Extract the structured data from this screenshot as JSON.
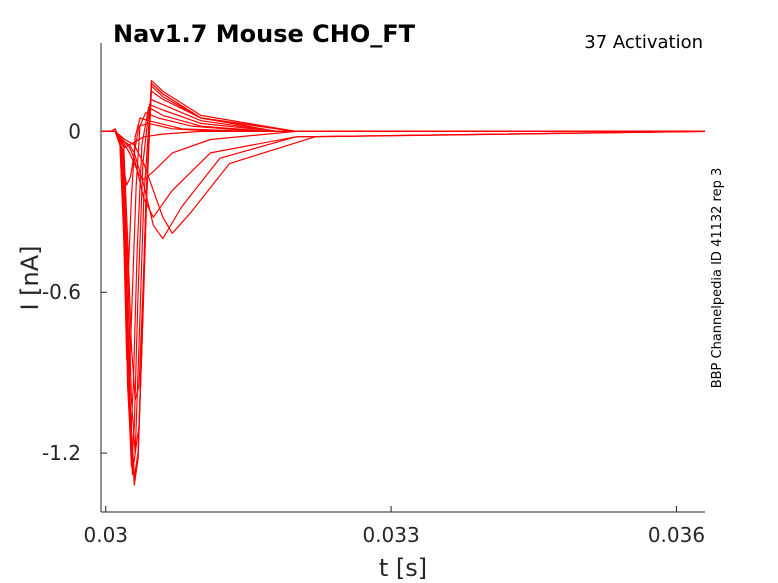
{
  "chart_data": {
    "type": "line",
    "title": "Nav1.7  Mouse  CHO_FT",
    "subtitle": "37  Activation",
    "side_note": "BBP Channelpedia ID 41132 rep 3",
    "xlabel": "t [s]",
    "ylabel": "I [nA]",
    "xlim": [
      0.02995,
      0.0363
    ],
    "ylim": [
      -1.42,
      0.33
    ],
    "xticks": [
      0.03,
      0.033,
      0.036
    ],
    "xtick_labels": [
      "0.03",
      "0.033",
      "0.036"
    ],
    "yticks": [
      0,
      -0.6,
      -1.2
    ],
    "ytick_labels": [
      "0",
      "-0.6",
      "-1.2"
    ],
    "grid": false,
    "line_color": "#ff0000",
    "series": [
      {
        "x": [
          0.02995,
          0.03,
          0.03005,
          0.0301,
          0.03012,
          0.03015,
          0.0302,
          0.03025,
          0.0303,
          0.0304,
          0.0306,
          0.031,
          0.033,
          0.0363
        ],
        "y": [
          0.0,
          0.0,
          0.0,
          0.01,
          -0.01,
          -0.03,
          -0.06,
          -0.05,
          -0.04,
          -0.02,
          -0.01,
          0.0,
          0.0,
          0.0
        ]
      },
      {
        "x": [
          0.02995,
          0.0301,
          0.03015,
          0.03018,
          0.03022,
          0.03026,
          0.0303,
          0.03035,
          0.03045,
          0.0307,
          0.0312,
          0.032,
          0.0363
        ],
        "y": [
          0.0,
          0.0,
          -0.04,
          -0.12,
          -0.2,
          -0.17,
          -0.08,
          0.02,
          0.03,
          0.01,
          0.0,
          0.0,
          0.0
        ]
      },
      {
        "x": [
          0.02995,
          0.0301,
          0.03015,
          0.03018,
          0.03021,
          0.03024,
          0.03027,
          0.03031,
          0.03036,
          0.03045,
          0.0308,
          0.0315,
          0.0363
        ],
        "y": [
          0.0,
          0.0,
          -0.05,
          -0.3,
          -0.55,
          -0.5,
          -0.25,
          -0.02,
          0.05,
          0.04,
          0.01,
          0.0,
          0.0
        ]
      },
      {
        "x": [
          0.02995,
          0.0301,
          0.03015,
          0.03019,
          0.03022,
          0.03025,
          0.03028,
          0.03032,
          0.03036,
          0.03042,
          0.03055,
          0.0309,
          0.0316,
          0.0363
        ],
        "y": [
          0.0,
          0.0,
          -0.05,
          -0.4,
          -0.85,
          -0.9,
          -0.6,
          -0.2,
          0.02,
          0.07,
          0.05,
          0.02,
          0.0,
          0.0
        ]
      },
      {
        "x": [
          0.02995,
          0.0301,
          0.03016,
          0.0302,
          0.03023,
          0.03026,
          0.03029,
          0.03033,
          0.03038,
          0.03045,
          0.0306,
          0.031,
          0.0317,
          0.0363
        ],
        "y": [
          0.0,
          0.0,
          -0.06,
          -0.45,
          -0.95,
          -1.15,
          -0.95,
          -0.45,
          -0.05,
          0.09,
          0.06,
          0.02,
          0.0,
          0.0
        ]
      },
      {
        "x": [
          0.02995,
          0.0301,
          0.03017,
          0.03021,
          0.03024,
          0.03027,
          0.0303,
          0.03034,
          0.03039,
          0.03046,
          0.0306,
          0.031,
          0.0318,
          0.0363
        ],
        "y": [
          0.0,
          0.0,
          -0.07,
          -0.5,
          -1.0,
          -1.25,
          -1.1,
          -0.6,
          -0.12,
          0.1,
          0.08,
          0.03,
          0.0,
          0.0
        ]
      },
      {
        "x": [
          0.02995,
          0.0301,
          0.03018,
          0.03022,
          0.03025,
          0.03028,
          0.03031,
          0.03035,
          0.0304,
          0.03047,
          0.0306,
          0.031,
          0.0318,
          0.0363
        ],
        "y": [
          0.0,
          0.0,
          -0.08,
          -0.55,
          -1.05,
          -1.28,
          -1.2,
          -0.8,
          -0.25,
          0.12,
          0.1,
          0.04,
          0.0,
          0.0
        ]
      },
      {
        "x": [
          0.02995,
          0.0301,
          0.03018,
          0.03022,
          0.03026,
          0.0303,
          0.03034,
          0.03038,
          0.03042,
          0.03048,
          0.0306,
          0.031,
          0.0318,
          0.0363
        ],
        "y": [
          0.0,
          0.0,
          -0.08,
          -0.55,
          -1.05,
          -1.29,
          -1.2,
          -0.8,
          -0.3,
          0.15,
          0.12,
          0.05,
          0.0,
          0.0
        ]
      },
      {
        "x": [
          0.02995,
          0.0301,
          0.03018,
          0.03022,
          0.03026,
          0.0303,
          0.03034,
          0.03038,
          0.03042,
          0.03048,
          0.0306,
          0.031,
          0.032,
          0.0363
        ],
        "y": [
          0.0,
          0.0,
          -0.08,
          -0.56,
          -1.08,
          -1.32,
          -1.22,
          -0.8,
          -0.3,
          0.18,
          0.14,
          0.05,
          0.0,
          0.0
        ]
      },
      {
        "x": [
          0.02995,
          0.0301,
          0.03018,
          0.03022,
          0.03026,
          0.0303,
          0.03034,
          0.03038,
          0.03042,
          0.03048,
          0.0306,
          0.031,
          0.032,
          0.0363
        ],
        "y": [
          0.0,
          0.0,
          -0.08,
          -0.56,
          -1.08,
          -1.3,
          -1.2,
          -0.78,
          -0.28,
          0.19,
          0.15,
          0.06,
          0.0,
          0.0
        ]
      },
      {
        "x": [
          0.02995,
          0.0301,
          0.03018,
          0.03023,
          0.03027,
          0.03031,
          0.03035,
          0.03039,
          0.03043,
          0.03048,
          0.0306,
          0.031,
          0.032,
          0.0363
        ],
        "y": [
          0.0,
          0.0,
          -0.07,
          -0.5,
          -1.0,
          -1.2,
          -1.1,
          -0.7,
          -0.25,
          0.18,
          0.14,
          0.05,
          0.0,
          0.0
        ]
      },
      {
        "x": [
          0.02995,
          0.0301,
          0.03019,
          0.03023,
          0.03027,
          0.03031,
          0.03035,
          0.03039,
          0.03043,
          0.03048,
          0.0306,
          0.031,
          0.032,
          0.0363
        ],
        "y": [
          0.0,
          0.0,
          -0.06,
          -0.4,
          -0.8,
          -1.0,
          -0.95,
          -0.6,
          -0.2,
          0.17,
          0.13,
          0.05,
          0.0,
          0.0
        ]
      },
      {
        "x": [
          0.02995,
          0.0301,
          0.0302,
          0.03025,
          0.0303,
          0.03035,
          0.0304,
          0.0305,
          0.0307,
          0.0311,
          0.032,
          0.0363
        ],
        "y": [
          0.0,
          0.0,
          -0.05,
          -0.08,
          -0.12,
          -0.16,
          -0.18,
          -0.15,
          -0.08,
          -0.03,
          0.0,
          0.0
        ]
      },
      {
        "x": [
          0.02995,
          0.0301,
          0.0302,
          0.03025,
          0.0303,
          0.0304,
          0.0305,
          0.0307,
          0.0311,
          0.032,
          0.0363
        ],
        "y": [
          0.0,
          0.0,
          -0.04,
          -0.06,
          -0.1,
          -0.25,
          -0.32,
          -0.22,
          -0.08,
          -0.02,
          0.0
        ]
      },
      {
        "x": [
          0.02995,
          0.0301,
          0.0302,
          0.03025,
          0.0303,
          0.0304,
          0.0305,
          0.0306,
          0.0308,
          0.0312,
          0.032,
          0.0363
        ],
        "y": [
          0.0,
          0.0,
          -0.04,
          -0.05,
          -0.08,
          -0.2,
          -0.35,
          -0.4,
          -0.28,
          -0.1,
          -0.02,
          0.0
        ]
      },
      {
        "x": [
          0.02995,
          0.0301,
          0.0302,
          0.0303,
          0.0304,
          0.0305,
          0.0306,
          0.0307,
          0.0309,
          0.0313,
          0.0322,
          0.0363
        ],
        "y": [
          0.0,
          0.0,
          -0.03,
          -0.05,
          -0.12,
          -0.22,
          -0.32,
          -0.38,
          -0.3,
          -0.12,
          -0.02,
          0.0
        ]
      }
    ]
  }
}
